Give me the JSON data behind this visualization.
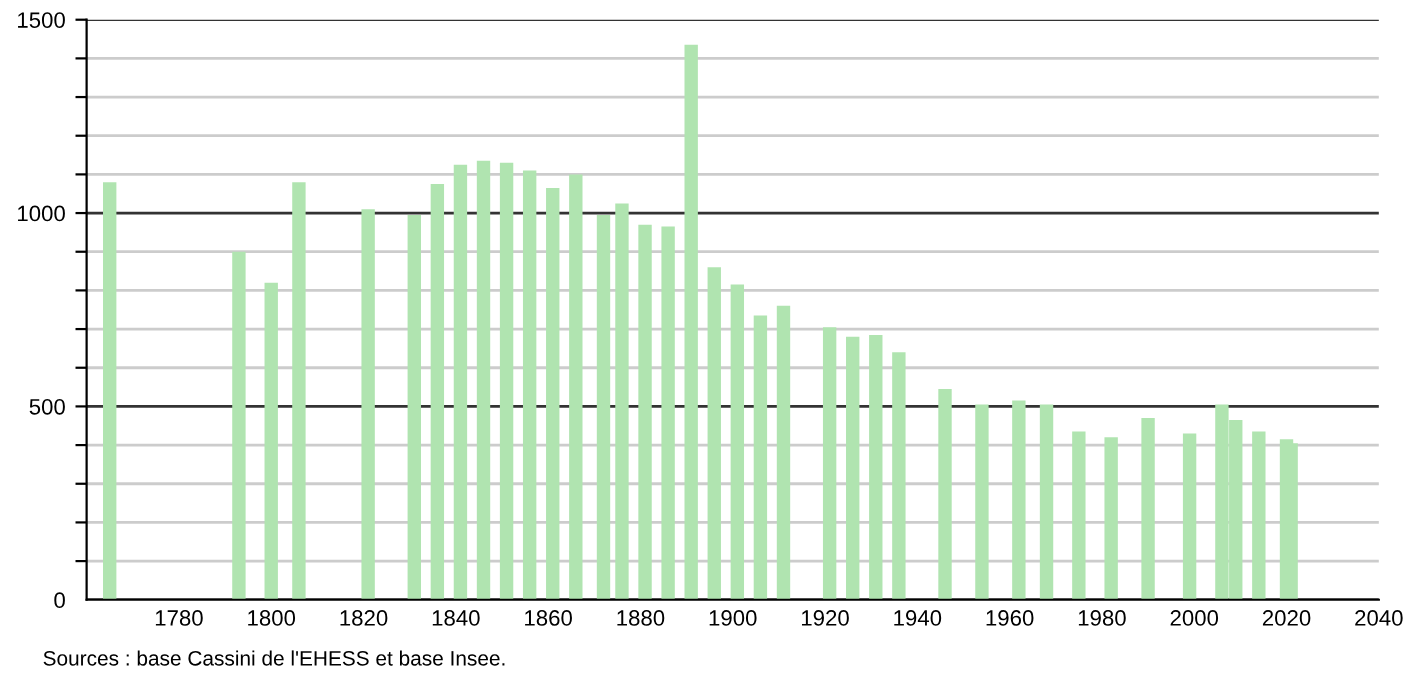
{
  "chart_data": {
    "type": "bar",
    "x": [
      1765,
      1793,
      1800,
      1806,
      1821,
      1831,
      1836,
      1841,
      1846,
      1851,
      1856,
      1861,
      1866,
      1872,
      1876,
      1881,
      1886,
      1891,
      1896,
      1901,
      1906,
      1911,
      1921,
      1926,
      1931,
      1936,
      1946,
      1954,
      1962,
      1968,
      1975,
      1982,
      1990,
      1999,
      2006,
      2009,
      2014,
      2020,
      2021
    ],
    "values": [
      1080,
      900,
      820,
      1080,
      1010,
      995,
      1075,
      1125,
      1135,
      1130,
      1110,
      1065,
      1100,
      995,
      1025,
      970,
      965,
      1435,
      860,
      815,
      735,
      760,
      705,
      680,
      685,
      640,
      545,
      505,
      515,
      505,
      435,
      420,
      470,
      430,
      505,
      465,
      435,
      415,
      405
    ],
    "color": "#b0e4b0",
    "xlim": [
      1760,
      2040
    ],
    "xticks": [
      1780,
      1800,
      1820,
      1840,
      1860,
      1880,
      1900,
      1920,
      1940,
      1960,
      1980,
      2000,
      2020,
      2040
    ],
    "ylim": [
      0,
      1500
    ],
    "yticks": [
      0,
      {
        "value": 100,
        "label": null
      },
      {
        "value": 200,
        "label": null
      },
      {
        "value": 300,
        "label": null
      },
      {
        "value": 400,
        "label": null
      },
      500,
      {
        "value": 600,
        "label": null
      },
      {
        "value": 700,
        "label": null
      },
      {
        "value": 800,
        "label": null
      },
      {
        "value": 900,
        "label": null
      },
      1000,
      {
        "value": 1100,
        "label": null
      },
      {
        "value": 1200,
        "label": null
      },
      {
        "value": 1300,
        "label": null
      },
      {
        "value": 1400,
        "label": null
      },
      1500
    ],
    "grid": "y",
    "annotations": [
      "Sources : base Cassini de l'EHESS et base Insee."
    ]
  }
}
